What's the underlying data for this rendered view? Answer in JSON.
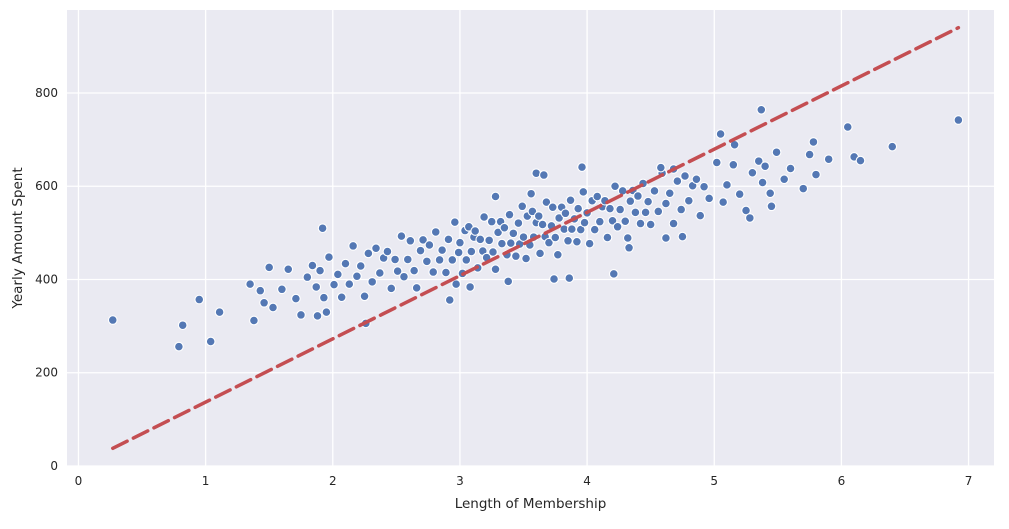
{
  "chart": {
    "x_ticks": [
      0,
      1,
      2,
      3,
      4,
      5,
      6,
      7
    ],
    "y_ticks": [
      0,
      200,
      400,
      600,
      800
    ],
    "xlim": [
      -0.09,
      7.2
    ],
    "ylim": [
      0,
      978
    ],
    "colors": {
      "plot_background": "#eaeaf2",
      "grid": "#ffffff",
      "point_fill": "#4c72b0",
      "point_edge": "#ffffff",
      "line": "#c44e52",
      "tick_label": "#262626",
      "axis_label": "#262626"
    }
  },
  "chart_data": {
    "type": "scatter",
    "title": "",
    "xlabel": "Length of Membership",
    "ylabel": "Yearly Amount Spent",
    "xlim": [
      -0.09,
      7.2
    ],
    "ylim": [
      0,
      978
    ],
    "grid": true,
    "legend": "none",
    "regression_line": {
      "style": "dashed",
      "color": "#c44e52",
      "x_start": 0.27,
      "y_start": 38,
      "x_end": 6.92,
      "y_end": 940
    },
    "points": [
      [
        0.27,
        313
      ],
      [
        0.79,
        256
      ],
      [
        0.82,
        302
      ],
      [
        0.95,
        357
      ],
      [
        1.04,
        267
      ],
      [
        1.11,
        330
      ],
      [
        1.35,
        390
      ],
      [
        1.38,
        312
      ],
      [
        1.43,
        376
      ],
      [
        1.46,
        350
      ],
      [
        1.5,
        426
      ],
      [
        1.53,
        340
      ],
      [
        1.6,
        379
      ],
      [
        1.65,
        422
      ],
      [
        1.71,
        359
      ],
      [
        1.75,
        324
      ],
      [
        1.8,
        405
      ],
      [
        1.84,
        430
      ],
      [
        1.87,
        384
      ],
      [
        1.9,
        419
      ],
      [
        1.93,
        361
      ],
      [
        1.97,
        448
      ],
      [
        1.92,
        510
      ],
      [
        1.88,
        322
      ],
      [
        1.95,
        330
      ],
      [
        2.01,
        389
      ],
      [
        2.04,
        411
      ],
      [
        2.07,
        362
      ],
      [
        2.1,
        434
      ],
      [
        2.13,
        390
      ],
      [
        2.16,
        472
      ],
      [
        2.19,
        407
      ],
      [
        2.22,
        429
      ],
      [
        2.25,
        364
      ],
      [
        2.28,
        456
      ],
      [
        2.31,
        395
      ],
      [
        2.34,
        467
      ],
      [
        2.37,
        414
      ],
      [
        2.4,
        446
      ],
      [
        2.43,
        460
      ],
      [
        2.46,
        381
      ],
      [
        2.49,
        443
      ],
      [
        2.26,
        306
      ],
      [
        2.51,
        418
      ],
      [
        2.54,
        493
      ],
      [
        2.56,
        406
      ],
      [
        2.59,
        443
      ],
      [
        2.61,
        483
      ],
      [
        2.64,
        419
      ],
      [
        2.66,
        382
      ],
      [
        2.69,
        462
      ],
      [
        2.71,
        485
      ],
      [
        2.74,
        439
      ],
      [
        2.76,
        474
      ],
      [
        2.79,
        416
      ],
      [
        2.81,
        502
      ],
      [
        2.84,
        442
      ],
      [
        2.86,
        463
      ],
      [
        2.89,
        415
      ],
      [
        2.91,
        486
      ],
      [
        2.94,
        442
      ],
      [
        2.96,
        523
      ],
      [
        2.99,
        458
      ],
      [
        2.92,
        356
      ],
      [
        2.97,
        390
      ],
      [
        3.0,
        479
      ],
      [
        3.02,
        413
      ],
      [
        3.04,
        505
      ],
      [
        3.05,
        442
      ],
      [
        3.07,
        513
      ],
      [
        3.09,
        460
      ],
      [
        3.11,
        491
      ],
      [
        3.12,
        504
      ],
      [
        3.14,
        425
      ],
      [
        3.16,
        486
      ],
      [
        3.18,
        461
      ],
      [
        3.19,
        534
      ],
      [
        3.21,
        447
      ],
      [
        3.23,
        484
      ],
      [
        3.25,
        524
      ],
      [
        3.26,
        459
      ],
      [
        3.28,
        422
      ],
      [
        3.3,
        501
      ],
      [
        3.32,
        524
      ],
      [
        3.33,
        477
      ],
      [
        3.35,
        511
      ],
      [
        3.37,
        453
      ],
      [
        3.39,
        539
      ],
      [
        3.4,
        478
      ],
      [
        3.42,
        499
      ],
      [
        3.44,
        450
      ],
      [
        3.46,
        521
      ],
      [
        3.47,
        476
      ],
      [
        3.49,
        557
      ],
      [
        3.5,
        491
      ],
      [
        3.08,
        384
      ],
      [
        3.38,
        396
      ],
      [
        3.28,
        578
      ],
      [
        3.52,
        445
      ],
      [
        3.53,
        536
      ],
      [
        3.55,
        474
      ],
      [
        3.57,
        546
      ],
      [
        3.58,
        491
      ],
      [
        3.6,
        522
      ],
      [
        3.62,
        536
      ],
      [
        3.63,
        456
      ],
      [
        3.65,
        518
      ],
      [
        3.67,
        492
      ],
      [
        3.68,
        566
      ],
      [
        3.7,
        479
      ],
      [
        3.72,
        515
      ],
      [
        3.73,
        555
      ],
      [
        3.75,
        490
      ],
      [
        3.77,
        453
      ],
      [
        3.78,
        532
      ],
      [
        3.8,
        555
      ],
      [
        3.82,
        508
      ],
      [
        3.83,
        542
      ],
      [
        3.85,
        483
      ],
      [
        3.87,
        570
      ],
      [
        3.88,
        508
      ],
      [
        3.9,
        530
      ],
      [
        3.92,
        481
      ],
      [
        3.93,
        552
      ],
      [
        3.95,
        507
      ],
      [
        3.97,
        588
      ],
      [
        3.98,
        522
      ],
      [
        4.0,
        543
      ],
      [
        3.6,
        628
      ],
      [
        3.66,
        624
      ],
      [
        3.74,
        401
      ],
      [
        3.86,
        403
      ],
      [
        3.56,
        584
      ],
      [
        3.96,
        641
      ],
      [
        4.02,
        477
      ],
      [
        4.04,
        569
      ],
      [
        4.06,
        507
      ],
      [
        4.08,
        578
      ],
      [
        4.1,
        524
      ],
      [
        4.12,
        556
      ],
      [
        4.14,
        569
      ],
      [
        4.16,
        490
      ],
      [
        4.18,
        552
      ],
      [
        4.2,
        526
      ],
      [
        4.22,
        600
      ],
      [
        4.24,
        513
      ],
      [
        4.26,
        550
      ],
      [
        4.28,
        590
      ],
      [
        4.3,
        525
      ],
      [
        4.32,
        489
      ],
      [
        4.34,
        568
      ],
      [
        4.36,
        591
      ],
      [
        4.38,
        544
      ],
      [
        4.4,
        579
      ],
      [
        4.42,
        520
      ],
      [
        4.44,
        606
      ],
      [
        4.46,
        544
      ],
      [
        4.48,
        567
      ],
      [
        4.5,
        518
      ],
      [
        4.21,
        412
      ],
      [
        4.33,
        468
      ],
      [
        4.53,
        590
      ],
      [
        4.56,
        546
      ],
      [
        4.59,
        628
      ],
      [
        4.62,
        563
      ],
      [
        4.65,
        585
      ],
      [
        4.68,
        520
      ],
      [
        4.71,
        611
      ],
      [
        4.74,
        550
      ],
      [
        4.77,
        622
      ],
      [
        4.8,
        569
      ],
      [
        4.83,
        601
      ],
      [
        4.86,
        615
      ],
      [
        4.89,
        537
      ],
      [
        4.92,
        599
      ],
      [
        4.96,
        574
      ],
      [
        4.62,
        489
      ],
      [
        4.75,
        492
      ],
      [
        4.58,
        640
      ],
      [
        4.68,
        637
      ],
      [
        5.02,
        651
      ],
      [
        5.07,
        566
      ],
      [
        5.1,
        603
      ],
      [
        5.15,
        646
      ],
      [
        5.2,
        583
      ],
      [
        5.25,
        548
      ],
      [
        5.3,
        629
      ],
      [
        5.35,
        654
      ],
      [
        5.38,
        608
      ],
      [
        5.4,
        643
      ],
      [
        5.44,
        585
      ],
      [
        5.49,
        673
      ],
      [
        5.05,
        712
      ],
      [
        5.37,
        764
      ],
      [
        5.28,
        532
      ],
      [
        5.45,
        557
      ],
      [
        5.16,
        689
      ],
      [
        5.55,
        615
      ],
      [
        5.6,
        638
      ],
      [
        5.7,
        595
      ],
      [
        5.75,
        668
      ],
      [
        5.8,
        625
      ],
      [
        5.9,
        658
      ],
      [
        5.78,
        695
      ],
      [
        6.05,
        727
      ],
      [
        6.1,
        663
      ],
      [
        6.15,
        655
      ],
      [
        6.4,
        685
      ],
      [
        6.92,
        742
      ]
    ]
  }
}
